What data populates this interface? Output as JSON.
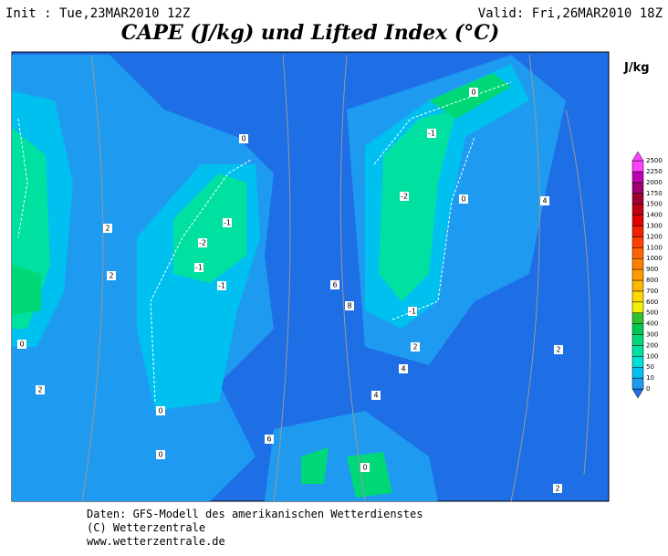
{
  "header": {
    "init": "Init : Tue,23MAR2010 12Z",
    "valid": "Valid: Fri,26MAR2010 18Z",
    "title": "CAPE (J/kg) und Lifted Index (°C)"
  },
  "legend": {
    "unit": "J/kg",
    "levels": [
      0,
      10,
      50,
      100,
      200,
      300,
      400,
      500,
      600,
      700,
      800,
      900,
      1000,
      1100,
      1200,
      1300,
      1400,
      1500,
      1750,
      2000,
      2250,
      2500
    ],
    "colors": [
      "#1e6ee6",
      "#1e9bf0",
      "#00c0f0",
      "#00e0d8",
      "#00e0a0",
      "#00d878",
      "#00c850",
      "#30c030",
      "#f0f000",
      "#ffd800",
      "#ffb800",
      "#ff9c00",
      "#ff8000",
      "#ff6400",
      "#ff4000",
      "#f02000",
      "#e00000",
      "#c00010",
      "#a00030",
      "#a00070",
      "#c000b0",
      "#ff40ff"
    ]
  },
  "map": {
    "contour_labels": [
      "0",
      "-1",
      "-2",
      "0",
      "-1",
      "-2",
      "-1",
      "-1",
      "0",
      "0",
      "2",
      "2",
      "2",
      "4",
      "6",
      "8",
      "4",
      "2",
      "0",
      "0",
      "2",
      "4",
      "6",
      "2",
      "0",
      "-1"
    ]
  },
  "footer": {
    "lines": [
      "Daten: GFS-Modell des amerikanischen Wetterdienstes",
      "(C) Wetterzentrale",
      "www.wetterzentrale.de"
    ]
  }
}
